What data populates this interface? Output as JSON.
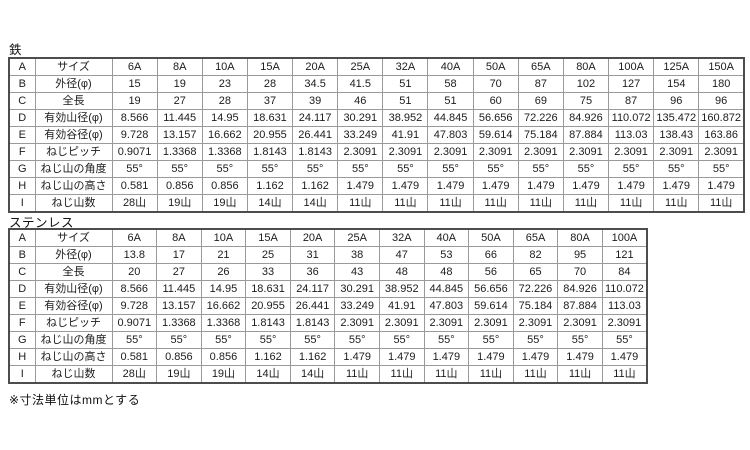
{
  "page": {
    "note": "※寸法単位はmmとする"
  },
  "tables": [
    {
      "title": "鉄",
      "rows": [
        {
          "key": "A",
          "label": "サイズ",
          "values": [
            "6A",
            "8A",
            "10A",
            "15A",
            "20A",
            "25A",
            "32A",
            "40A",
            "50A",
            "65A",
            "80A",
            "100A",
            "125A",
            "150A"
          ]
        },
        {
          "key": "B",
          "label": "外径(φ)",
          "values": [
            "15",
            "19",
            "23",
            "28",
            "34.5",
            "41.5",
            "51",
            "58",
            "70",
            "87",
            "102",
            "127",
            "154",
            "180"
          ]
        },
        {
          "key": "C",
          "label": "全長",
          "values": [
            "19",
            "27",
            "28",
            "37",
            "39",
            "46",
            "51",
            "51",
            "60",
            "69",
            "75",
            "87",
            "96",
            "96"
          ]
        },
        {
          "key": "D",
          "label": "有効山径(φ)",
          "values": [
            "8.566",
            "11.445",
            "14.95",
            "18.631",
            "24.117",
            "30.291",
            "38.952",
            "44.845",
            "56.656",
            "72.226",
            "84.926",
            "110.072",
            "135.472",
            "160.872"
          ]
        },
        {
          "key": "E",
          "label": "有効谷径(φ)",
          "values": [
            "9.728",
            "13.157",
            "16.662",
            "20.955",
            "26.441",
            "33.249",
            "41.91",
            "47.803",
            "59.614",
            "75.184",
            "87.884",
            "113.03",
            "138.43",
            "163.86"
          ]
        },
        {
          "key": "F",
          "label": "ねじピッチ",
          "values": [
            "0.9071",
            "1.3368",
            "1.3368",
            "1.8143",
            "1.8143",
            "2.3091",
            "2.3091",
            "2.3091",
            "2.3091",
            "2.3091",
            "2.3091",
            "2.3091",
            "2.3091",
            "2.3091"
          ]
        },
        {
          "key": "G",
          "label": "ねじ山の角度",
          "values": [
            "55°",
            "55°",
            "55°",
            "55°",
            "55°",
            "55°",
            "55°",
            "55°",
            "55°",
            "55°",
            "55°",
            "55°",
            "55°",
            "55°"
          ]
        },
        {
          "key": "H",
          "label": "ねじ山の高さ",
          "values": [
            "0.581",
            "0.856",
            "0.856",
            "1.162",
            "1.162",
            "1.479",
            "1.479",
            "1.479",
            "1.479",
            "1.479",
            "1.479",
            "1.479",
            "1.479",
            "1.479"
          ]
        },
        {
          "key": "I",
          "label": "ねじ山数",
          "values": [
            "28山",
            "19山",
            "19山",
            "14山",
            "14山",
            "11山",
            "11山",
            "11山",
            "11山",
            "11山",
            "11山",
            "11山",
            "11山",
            "11山"
          ]
        }
      ]
    },
    {
      "title": "ステンレス",
      "rows": [
        {
          "key": "A",
          "label": "サイズ",
          "values": [
            "6A",
            "8A",
            "10A",
            "15A",
            "20A",
            "25A",
            "32A",
            "40A",
            "50A",
            "65A",
            "80A",
            "100A"
          ]
        },
        {
          "key": "B",
          "label": "外径(φ)",
          "values": [
            "13.8",
            "17",
            "21",
            "25",
            "31",
            "38",
            "47",
            "53",
            "66",
            "82",
            "95",
            "121"
          ]
        },
        {
          "key": "C",
          "label": "全長",
          "values": [
            "20",
            "27",
            "26",
            "33",
            "36",
            "43",
            "48",
            "48",
            "56",
            "65",
            "70",
            "84"
          ]
        },
        {
          "key": "D",
          "label": "有効山径(φ)",
          "values": [
            "8.566",
            "11.445",
            "14.95",
            "18.631",
            "24.117",
            "30.291",
            "38.952",
            "44.845",
            "56.656",
            "72.226",
            "84.926",
            "110.072"
          ]
        },
        {
          "key": "E",
          "label": "有効谷径(φ)",
          "values": [
            "9.728",
            "13.157",
            "16.662",
            "20.955",
            "26.441",
            "33.249",
            "41.91",
            "47.803",
            "59.614",
            "75.184",
            "87.884",
            "113.03"
          ]
        },
        {
          "key": "F",
          "label": "ねじピッチ",
          "values": [
            "0.9071",
            "1.3368",
            "1.3368",
            "1.8143",
            "1.8143",
            "2.3091",
            "2.3091",
            "2.3091",
            "2.3091",
            "2.3091",
            "2.3091",
            "2.3091"
          ]
        },
        {
          "key": "G",
          "label": "ねじ山の角度",
          "values": [
            "55°",
            "55°",
            "55°",
            "55°",
            "55°",
            "55°",
            "55°",
            "55°",
            "55°",
            "55°",
            "55°",
            "55°"
          ]
        },
        {
          "key": "H",
          "label": "ねじ山の高さ",
          "values": [
            "0.581",
            "0.856",
            "0.856",
            "1.162",
            "1.162",
            "1.479",
            "1.479",
            "1.479",
            "1.479",
            "1.479",
            "1.479",
            "1.479"
          ]
        },
        {
          "key": "I",
          "label": "ねじ山数",
          "values": [
            "28山",
            "19山",
            "19山",
            "14山",
            "14山",
            "11山",
            "11山",
            "11山",
            "11山",
            "11山",
            "11山",
            "11山"
          ]
        }
      ]
    }
  ]
}
